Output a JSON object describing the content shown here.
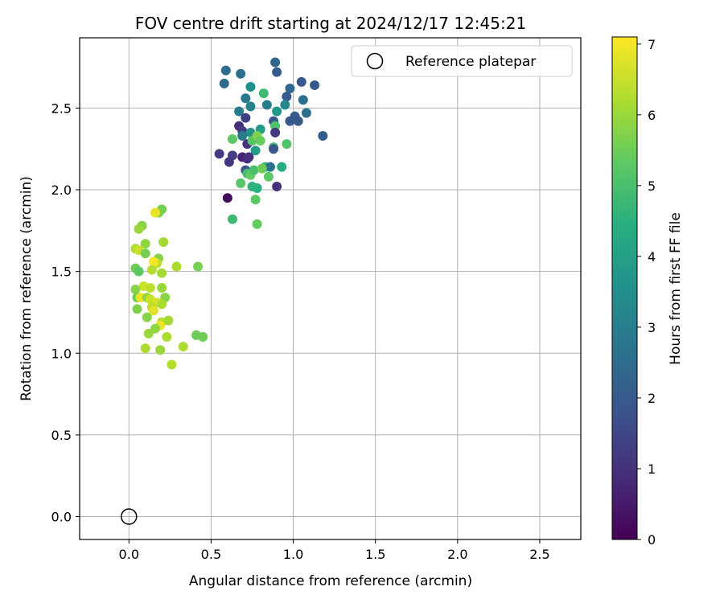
{
  "chart_data": {
    "type": "scatter",
    "title": "FOV centre drift starting at 2024/12/17 12:45:21",
    "xlabel": "Angular distance from reference (arcmin)",
    "ylabel": "Rotation from reference (arcmin)",
    "xlim": [
      -0.3,
      2.75
    ],
    "ylim": [
      -0.14,
      2.93
    ],
    "xticks": [
      "0.0",
      "0.5",
      "1.0",
      "1.5",
      "2.0",
      "2.5"
    ],
    "yticks": [
      "0.0",
      "0.5",
      "1.0",
      "1.5",
      "2.0",
      "2.5"
    ],
    "grid": true,
    "legend": {
      "placement": "top-right",
      "entries": [
        "Reference platepar"
      ]
    },
    "colorbar": {
      "label": "Hours from first FF file",
      "ticks": [
        "0",
        "1",
        "2",
        "3",
        "4",
        "5",
        "6",
        "7"
      ],
      "range": [
        0,
        7.1
      ],
      "colormap": "viridis"
    },
    "reference_point": {
      "x": 0.0,
      "y": 0.0,
      "label": "Reference platepar"
    },
    "points": [
      [
        0.59,
        2.73,
        2.5
      ],
      [
        0.58,
        2.65,
        2.4
      ],
      [
        0.68,
        2.71,
        2.6
      ],
      [
        0.89,
        2.78,
        2.3
      ],
      [
        0.9,
        2.72,
        2.0
      ],
      [
        0.74,
        2.63,
        3.5
      ],
      [
        0.98,
        2.62,
        2.4
      ],
      [
        1.05,
        2.66,
        2.0
      ],
      [
        1.13,
        2.64,
        2.0
      ],
      [
        0.71,
        2.56,
        2.8
      ],
      [
        0.96,
        2.57,
        2.0
      ],
      [
        1.06,
        2.55,
        2.6
      ],
      [
        0.82,
        2.59,
        4.8
      ],
      [
        0.67,
        2.48,
        2.9
      ],
      [
        0.74,
        2.51,
        3.1
      ],
      [
        0.84,
        2.52,
        2.9
      ],
      [
        0.95,
        2.52,
        3.3
      ],
      [
        0.9,
        2.48,
        3.7
      ],
      [
        1.08,
        2.47,
        2.6
      ],
      [
        0.71,
        2.44,
        1.3
      ],
      [
        0.88,
        2.42,
        2.0
      ],
      [
        0.98,
        2.42,
        2.0
      ],
      [
        1.03,
        2.42,
        2.0
      ],
      [
        1.01,
        2.45,
        2.0
      ],
      [
        0.67,
        2.39,
        0.9
      ],
      [
        0.69,
        2.36,
        1.2
      ],
      [
        0.74,
        2.35,
        3.6
      ],
      [
        0.8,
        2.37,
        3.9
      ],
      [
        0.89,
        2.39,
        5.1
      ],
      [
        0.89,
        2.35,
        1.1
      ],
      [
        1.18,
        2.33,
        2.1
      ],
      [
        0.63,
        2.31,
        5.3
      ],
      [
        0.69,
        2.33,
        2.9
      ],
      [
        0.72,
        2.28,
        1.0
      ],
      [
        0.75,
        2.3,
        5.2
      ],
      [
        0.78,
        2.33,
        5.7
      ],
      [
        0.8,
        2.3,
        5.4
      ],
      [
        0.96,
        2.28,
        5.1
      ],
      [
        0.55,
        2.22,
        1.2
      ],
      [
        0.63,
        2.21,
        1.3
      ],
      [
        0.77,
        2.24,
        3.9
      ],
      [
        0.88,
        2.26,
        4.9
      ],
      [
        0.88,
        2.25,
        1.9
      ],
      [
        0.61,
        2.17,
        1.1
      ],
      [
        0.69,
        2.2,
        0.7
      ],
      [
        0.72,
        2.19,
        0.9
      ],
      [
        0.73,
        2.2,
        1.0
      ],
      [
        0.83,
        2.14,
        4.7
      ],
      [
        0.86,
        2.14,
        2.7
      ],
      [
        0.93,
        2.14,
        4.4
      ],
      [
        0.71,
        2.12,
        1.8
      ],
      [
        0.72,
        2.1,
        4.9
      ],
      [
        0.74,
        2.09,
        5.4
      ],
      [
        0.76,
        2.12,
        5.0
      ],
      [
        0.81,
        2.13,
        5.5
      ],
      [
        0.85,
        2.08,
        5.3
      ],
      [
        0.68,
        2.04,
        5.2
      ],
      [
        0.75,
        2.02,
        4.6
      ],
      [
        0.78,
        2.01,
        4.5
      ],
      [
        0.9,
        2.02,
        1.0
      ],
      [
        0.6,
        1.95,
        0.2
      ],
      [
        0.77,
        1.94,
        5.3
      ],
      [
        0.63,
        1.82,
        4.8
      ],
      [
        0.78,
        1.79,
        5.4
      ],
      [
        0.2,
        1.88,
        5.6
      ],
      [
        0.18,
        1.86,
        5.7
      ],
      [
        0.16,
        1.86,
        6.9
      ],
      [
        0.08,
        1.78,
        5.8
      ],
      [
        0.06,
        1.76,
        6.0
      ],
      [
        0.21,
        1.68,
        6.1
      ],
      [
        0.1,
        1.67,
        5.9
      ],
      [
        0.04,
        1.64,
        6.2
      ],
      [
        0.06,
        1.63,
        6.5
      ],
      [
        0.1,
        1.61,
        5.6
      ],
      [
        0.18,
        1.58,
        5.8
      ],
      [
        0.17,
        1.55,
        6.4
      ],
      [
        0.15,
        1.56,
        7.0
      ],
      [
        0.04,
        1.52,
        5.5
      ],
      [
        0.06,
        1.5,
        5.3
      ],
      [
        0.14,
        1.51,
        6.3
      ],
      [
        0.2,
        1.49,
        6.1
      ],
      [
        0.29,
        1.53,
        6.2
      ],
      [
        0.42,
        1.53,
        5.6
      ],
      [
        0.09,
        1.41,
        6.6
      ],
      [
        0.04,
        1.39,
        5.8
      ],
      [
        0.13,
        1.4,
        6.4
      ],
      [
        0.2,
        1.4,
        6.0
      ],
      [
        0.05,
        1.34,
        5.5
      ],
      [
        0.07,
        1.34,
        6.9
      ],
      [
        0.11,
        1.34,
        5.9
      ],
      [
        0.13,
        1.33,
        6.5
      ],
      [
        0.17,
        1.31,
        6.7
      ],
      [
        0.22,
        1.34,
        5.8
      ],
      [
        0.05,
        1.27,
        5.7
      ],
      [
        0.14,
        1.28,
        6.4
      ],
      [
        0.15,
        1.26,
        6.8
      ],
      [
        0.2,
        1.3,
        6.2
      ],
      [
        0.11,
        1.22,
        5.8
      ],
      [
        0.2,
        1.19,
        6.3
      ],
      [
        0.24,
        1.2,
        6.1
      ],
      [
        0.19,
        1.17,
        6.9
      ],
      [
        0.16,
        1.15,
        5.9
      ],
      [
        0.12,
        1.12,
        6.0
      ],
      [
        0.23,
        1.1,
        6.2
      ],
      [
        0.41,
        1.11,
        5.5
      ],
      [
        0.45,
        1.1,
        5.5
      ],
      [
        0.1,
        1.03,
        6.2
      ],
      [
        0.19,
        1.02,
        6.0
      ],
      [
        0.33,
        1.04,
        6.2
      ],
      [
        0.26,
        0.93,
        6.3
      ]
    ]
  }
}
